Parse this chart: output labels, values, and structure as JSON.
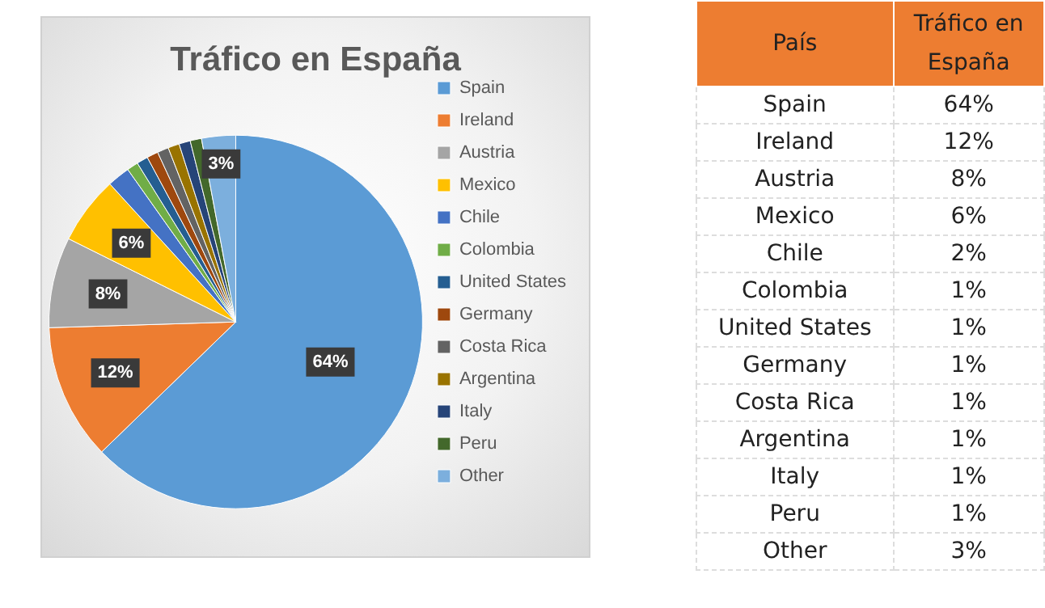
{
  "chart_data": [
    {
      "type": "pie",
      "title": "Tráfico en España",
      "categories": [
        "Spain",
        "Ireland",
        "Austria",
        "Mexico",
        "Chile",
        "Colombia",
        "United States",
        "Germany",
        "Costa Rica",
        "Argentina",
        "Italy",
        "Peru",
        "Other"
      ],
      "values": [
        64,
        12,
        8,
        6,
        2,
        1,
        1,
        1,
        1,
        1,
        1,
        1,
        3
      ],
      "colors": [
        "#5b9bd5",
        "#ed7d31",
        "#a5a5a5",
        "#ffc000",
        "#4472c4",
        "#70ad47",
        "#255e91",
        "#9e480e",
        "#636363",
        "#997300",
        "#264478",
        "#43682b",
        "#7cafdd"
      ],
      "value_labels": [
        "64%",
        "12%",
        "8%",
        "6%",
        null,
        null,
        null,
        null,
        null,
        null,
        null,
        null,
        "3%"
      ],
      "legend": "right"
    },
    {
      "type": "other",
      "categories": [
        "Spain",
        "Ireland",
        "Austria",
        "Mexico",
        "Chile",
        "Colombia",
        "United States",
        "Germany",
        "Costa Rica",
        "Argentina",
        "Italy",
        "Peru",
        "Other"
      ],
      "value_labels": [
        "64%",
        "12%",
        "8%",
        "6%",
        "2%",
        "1%",
        "1%",
        "1%",
        "1%",
        "1%",
        "1%",
        "1%",
        "3%"
      ],
      "annotations": [
        "País",
        "Tráfico en España"
      ]
    }
  ]
}
